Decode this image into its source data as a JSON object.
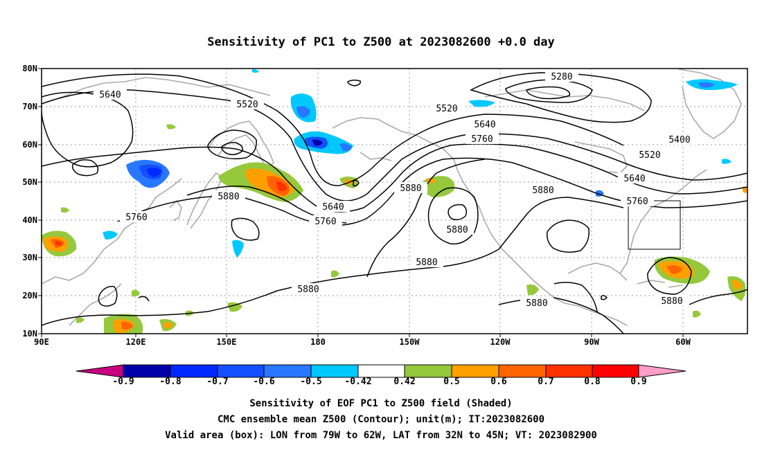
{
  "title": "Sensitivity of PC1 to Z500 at 2023082600 +0.0 day",
  "map": {
    "lat_labels": [
      "80N",
      "70N",
      "60N",
      "50N",
      "40N",
      "30N",
      "20N",
      "10N"
    ],
    "lon_labels": [
      "90E",
      "120E",
      "150E",
      "180",
      "150W",
      "120W",
      "90W",
      "60W"
    ],
    "lon_range": [
      90,
      330
    ],
    "lat_range": [
      10,
      80
    ],
    "valid_box": {
      "lon": [
        -79,
        -62
      ],
      "lat": [
        32,
        45
      ]
    },
    "contour_labels": [
      "5640",
      "5520",
      "5520",
      "5640",
      "5760",
      "5280",
      "5400",
      "5520",
      "5640",
      "5760",
      "5880",
      "5880",
      "5640",
      "5760",
      "5880",
      "5760",
      "5880",
      "5880",
      "5880",
      "5880"
    ],
    "colors": {
      "contour": "#000000",
      "coast": "#aaaaaa",
      "grid": "#999999"
    }
  },
  "colorbar": {
    "labels": [
      "-0.9",
      "-0.8",
      "-0.7",
      "-0.6",
      "-0.5",
      "-0.42",
      "0.42",
      "0.5",
      "0.6",
      "0.7",
      "0.8",
      "0.9"
    ],
    "colors": [
      "#c8007f",
      "#0000aa",
      "#0028ff",
      "#1450ff",
      "#2878ff",
      "#00c8ff",
      "#ffffff",
      "#96c83c",
      "#ffa000",
      "#ff6400",
      "#ff3200",
      "#ff0000",
      "#ff9ec8"
    ]
  },
  "footer": {
    "line1": "Sensitivity of EOF PC1 to Z500 field (Shaded)",
    "line2": "CMC ensemble mean Z500 (Contour); unit(m); IT:2023082600",
    "line3": "Valid area (box): LON from 79W to 62W, LAT from 32N to 45N; VT: 2023082900"
  }
}
